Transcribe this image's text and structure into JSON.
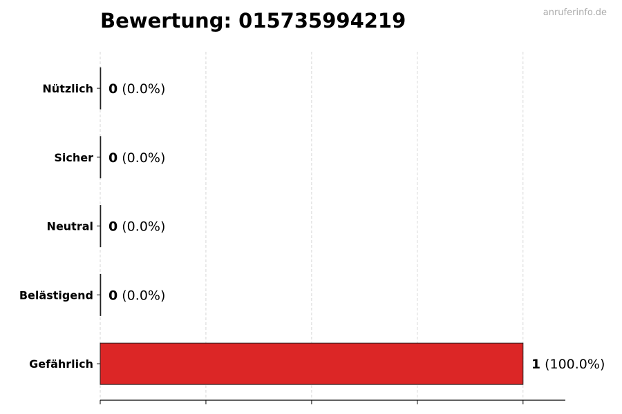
{
  "chart_data": {
    "type": "bar",
    "orientation": "horizontal",
    "title": "Bewertung: 015735994219",
    "watermark": "anruferinfo.de",
    "categories": [
      "Nützlich",
      "Sicher",
      "Neutral",
      "Belästigend",
      "Gefährlich"
    ],
    "values": [
      0,
      0,
      0,
      0,
      1
    ],
    "percent_labels": [
      "(0.0%)",
      "(0.0%)",
      "(0.0%)",
      "(0.0%)",
      "(100.0%)"
    ],
    "xlim": [
      0,
      1.1
    ],
    "x_ticks": [
      0,
      0.25,
      0.5,
      0.75,
      1.0
    ],
    "grid": "x-dashed",
    "colors": {
      "bar": "#dc2626",
      "edge": "#222222",
      "grid": "#cccccc",
      "watermark": "#aaaaaa"
    }
  }
}
